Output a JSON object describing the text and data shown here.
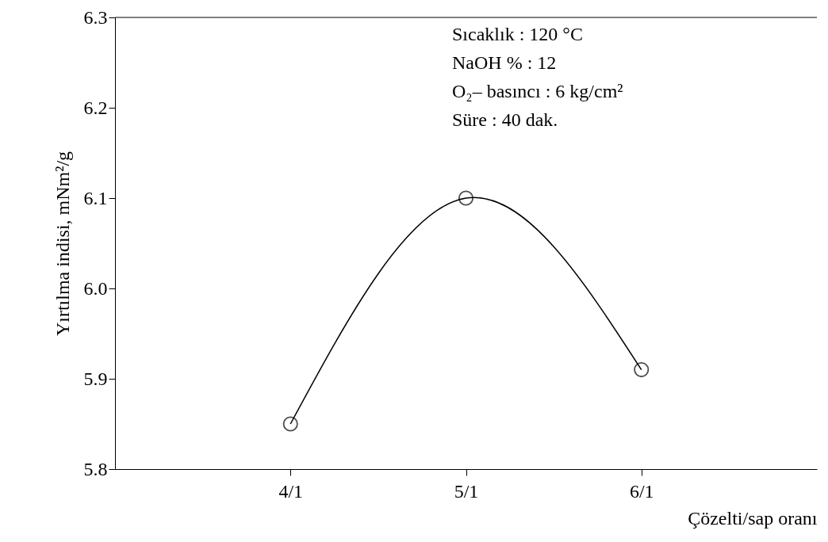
{
  "chart_data": {
    "type": "line",
    "xlabel": "Çözelti/sap oranı",
    "ylabel": "Yırtılma indisi, mNm²/g",
    "categories": [
      "4/1",
      "5/1",
      "6/1"
    ],
    "values": [
      5.85,
      6.1,
      5.91
    ],
    "color": "#000000",
    "marker": "circle",
    "line_style": "solid",
    "ylim": [
      5.8,
      6.3
    ],
    "yticks": [
      5.8,
      5.9,
      {
        "value": 6.0,
        "label": "6.0"
      },
      6.1,
      6.2,
      6.3
    ],
    "annotations": [
      "Sıcaklık      : 120 °C",
      "NaOH %        : 12",
      "O₂– basıncı : 6 kg/cm²",
      "Süre            : 40 dak."
    ]
  }
}
